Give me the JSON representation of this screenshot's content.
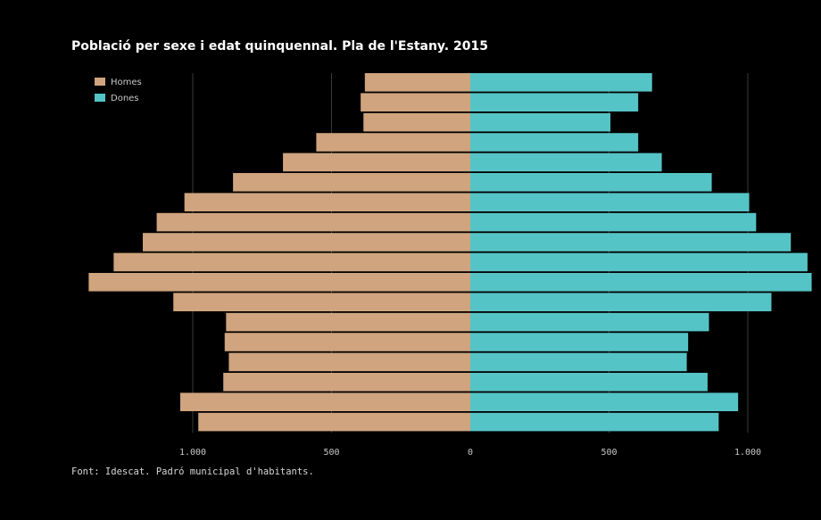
{
  "title": "Població per sexe i edat quinquennal. Pla de l'Estany. 2015",
  "source": "Font: Idescat. Padró municipal d'habitants.",
  "colors": {
    "background": "#000000",
    "homes": "#CFA47E",
    "dones": "#55C4C6",
    "grid": "#3a3a3a",
    "text": "#c8c8c8"
  },
  "chart_data": {
    "type": "bar",
    "orientation": "horizontal-population-pyramid",
    "title": "Població per sexe i edat quinquennal. Pla de l'Estany. 2015",
    "x_ticks": [
      {
        "value": -1000,
        "label": "1.000"
      },
      {
        "value": -500,
        "label": "500"
      },
      {
        "value": 0,
        "label": "0"
      },
      {
        "value": 500,
        "label": "500"
      },
      {
        "value": 1000,
        "label": "1.000"
      }
    ],
    "xlim": [
      -1370,
      1240
    ],
    "legend": {
      "position": "top-left",
      "entries": [
        "Homes",
        "Dones"
      ]
    },
    "rows_order": "top-to-bottom = oldest-to-youngest",
    "series": [
      {
        "name": "Homes",
        "color": "#CFA47E",
        "values": [
          380,
          395,
          385,
          555,
          675,
          855,
          1030,
          1130,
          1180,
          1285,
          1375,
          1070,
          880,
          885,
          870,
          890,
          1045,
          980
        ]
      },
      {
        "name": "Dones",
        "color": "#55C4C6",
        "values": [
          655,
          605,
          505,
          605,
          690,
          870,
          1005,
          1030,
          1155,
          1215,
          1230,
          1085,
          860,
          785,
          780,
          855,
          965,
          895
        ]
      }
    ]
  }
}
